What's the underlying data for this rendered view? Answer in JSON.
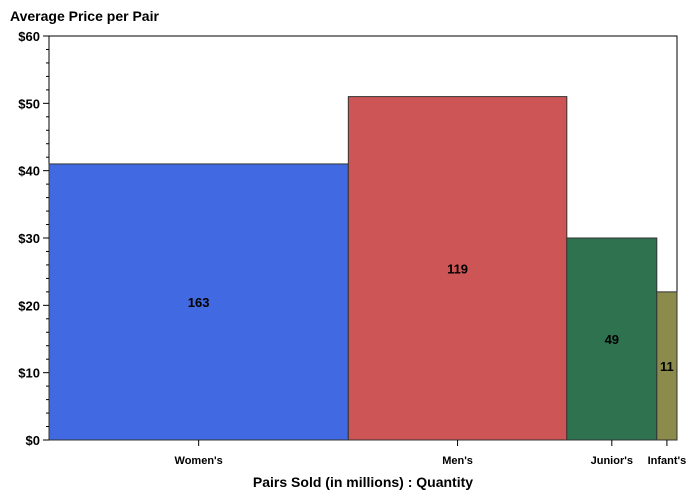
{
  "chart_data": {
    "type": "bar",
    "subtype": "variable-width",
    "ylabel": "Average Price per Pair",
    "xlabel": "Pairs Sold (in millions) : Quantity",
    "ylim": [
      0,
      60
    ],
    "y_ticks": [
      "$0",
      "$10",
      "$20",
      "$30",
      "$40",
      "$50",
      "$60"
    ],
    "y_minor_ticks_per_major": 5,
    "grid": false,
    "bars": [
      {
        "category": "Women's",
        "quantity": 163,
        "price": 41,
        "label": "163",
        "color": "#4169e1"
      },
      {
        "category": "Men's",
        "quantity": 119,
        "price": 51,
        "label": "119",
        "color": "#cd5555"
      },
      {
        "category": "Junior's",
        "quantity": 49,
        "price": 30,
        "label": "49",
        "color": "#2e7250"
      },
      {
        "category": "Infant's",
        "quantity": 11,
        "price": 22,
        "label": "11",
        "color": "#8b8b4b"
      }
    ]
  }
}
